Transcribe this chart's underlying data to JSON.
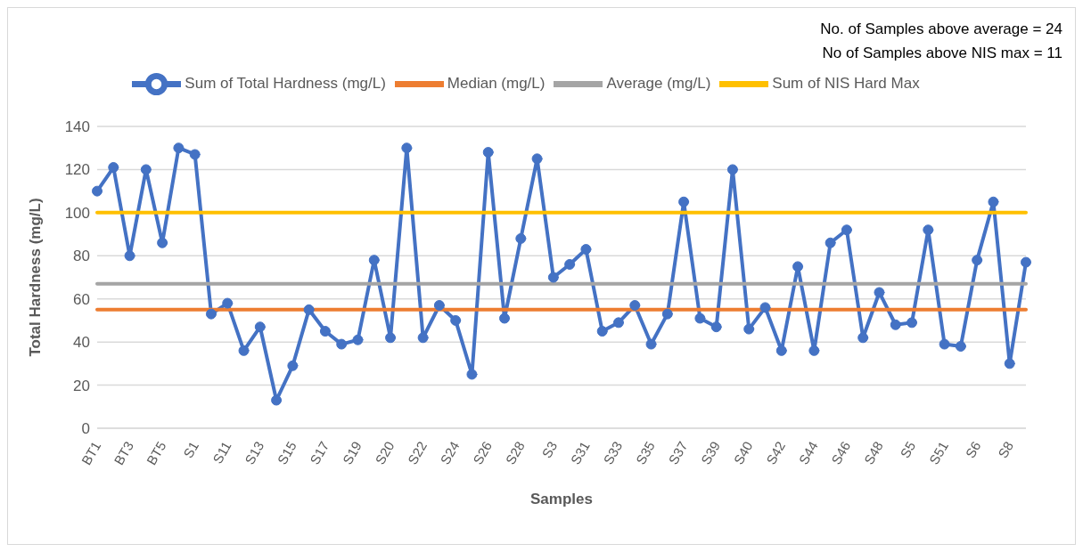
{
  "chart_data": {
    "type": "line",
    "xlabel": "Samples",
    "ylabel": "Total Hardness (mg/L)",
    "annotations": [
      "No. of Samples above average = 24",
      "No of Samples above NIS max = 11"
    ],
    "categories": [
      "BT1",
      null,
      "BT3",
      null,
      "BT5",
      null,
      "S1",
      null,
      "S11",
      null,
      "S13",
      null,
      "S15",
      null,
      "S17",
      null,
      "S19",
      null,
      "S20",
      null,
      "S22",
      null,
      "S24",
      null,
      "S26",
      null,
      "S28",
      null,
      "S3",
      null,
      "S31",
      null,
      "S33",
      null,
      "S35",
      null,
      "S37",
      null,
      "S39",
      null,
      "S40",
      null,
      "S42",
      null,
      "S44",
      null,
      "S46",
      null,
      "S48",
      null,
      "S5",
      null,
      "S51",
      null,
      "S6",
      null,
      "S8",
      null
    ],
    "series": [
      {
        "name": "Sum of Total Hardness (mg/L)",
        "color": "#4472c4",
        "marker": "circle",
        "values": [
          110,
          121,
          80,
          120,
          86,
          130,
          127,
          53,
          58,
          36,
          47,
          13,
          29,
          55,
          45,
          39,
          41,
          78,
          42,
          130,
          42,
          57,
          50,
          25,
          128,
          51,
          88,
          125,
          70,
          76,
          83,
          45,
          49,
          57,
          39,
          53,
          105,
          51,
          47,
          120,
          46,
          56,
          36,
          75,
          36,
          86,
          92,
          42,
          63,
          48,
          49,
          92,
          39,
          38,
          78,
          105,
          30,
          77
        ]
      },
      {
        "name": "Median (mg/L)",
        "color": "#ed7d31",
        "marker": "none",
        "values": [
          55,
          55,
          55,
          55,
          55,
          55,
          55,
          55,
          55,
          55,
          55,
          55,
          55,
          55,
          55,
          55,
          55,
          55,
          55,
          55,
          55,
          55,
          55,
          55,
          55,
          55,
          55,
          55,
          55,
          55,
          55,
          55,
          55,
          55,
          55,
          55,
          55,
          55,
          55,
          55,
          55,
          55,
          55,
          55,
          55,
          55,
          55,
          55,
          55,
          55,
          55,
          55,
          55,
          55,
          55,
          55,
          55,
          55
        ]
      },
      {
        "name": "Average (mg/L)",
        "color": "#a5a5a5",
        "marker": "none",
        "values": [
          67,
          67,
          67,
          67,
          67,
          67,
          67,
          67,
          67,
          67,
          67,
          67,
          67,
          67,
          67,
          67,
          67,
          67,
          67,
          67,
          67,
          67,
          67,
          67,
          67,
          67,
          67,
          67,
          67,
          67,
          67,
          67,
          67,
          67,
          67,
          67,
          67,
          67,
          67,
          67,
          67,
          67,
          67,
          67,
          67,
          67,
          67,
          67,
          67,
          67,
          67,
          67,
          67,
          67,
          67,
          67,
          67,
          67
        ]
      },
      {
        "name": "Sum of NIS Hard Max",
        "color": "#ffc000",
        "marker": "none",
        "values": [
          100,
          100,
          100,
          100,
          100,
          100,
          100,
          100,
          100,
          100,
          100,
          100,
          100,
          100,
          100,
          100,
          100,
          100,
          100,
          100,
          100,
          100,
          100,
          100,
          100,
          100,
          100,
          100,
          100,
          100,
          100,
          100,
          100,
          100,
          100,
          100,
          100,
          100,
          100,
          100,
          100,
          100,
          100,
          100,
          100,
          100,
          100,
          100,
          100,
          100,
          100,
          100,
          100,
          100,
          100,
          100,
          100,
          100
        ]
      }
    ],
    "ylim": [
      0,
      140
    ],
    "yticks": [
      0,
      20,
      40,
      60,
      80,
      100,
      120,
      140
    ],
    "grid": "y",
    "legend": "top"
  }
}
